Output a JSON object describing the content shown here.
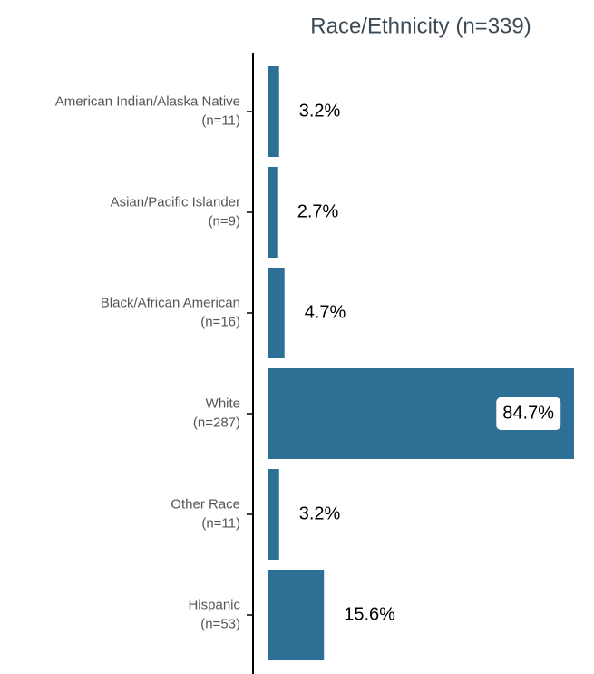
{
  "chart_data": {
    "type": "hbar",
    "title": "Race/Ethnicity (n=339)",
    "categories": [
      [
        "American Indian/Alaska Native",
        "(n=11)"
      ],
      [
        "Asian/Pacific Islander",
        "(n=9)"
      ],
      [
        "Black/African American",
        "(n=16)"
      ],
      [
        "White",
        "(n=287)"
      ],
      [
        "Other Race",
        "(n=11)"
      ],
      [
        "Hispanic",
        "(n=53)"
      ]
    ],
    "values": [
      3.2,
      2.7,
      4.7,
      84.7,
      3.2,
      15.6
    ],
    "value_labels": [
      "3.2%",
      "2.7%",
      "4.7%",
      "84.7%",
      "3.2%",
      "15.6%"
    ],
    "color": "#2e6f96",
    "xlim": [
      -4,
      84.7
    ]
  }
}
